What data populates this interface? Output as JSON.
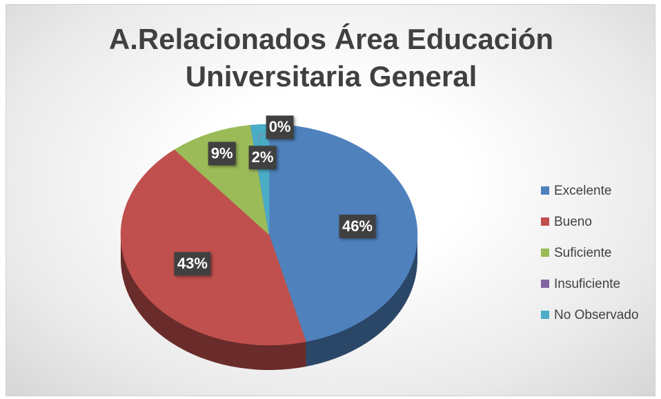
{
  "chart_data": {
    "type": "pie",
    "title": "A.Relacionados Área Educación Universitaria General",
    "categories": [
      "Excelente",
      "Bueno",
      "Suficiente",
      "Insuficiente",
      "No Observado"
    ],
    "values": [
      46,
      43,
      9,
      0,
      2
    ],
    "value_labels": [
      "46%",
      "43%",
      "9%",
      "0%",
      "2%"
    ],
    "colors": [
      "#4f81bd",
      "#c0504d",
      "#9bbb59",
      "#8064a2",
      "#4bacc6"
    ],
    "legend": "right"
  }
}
